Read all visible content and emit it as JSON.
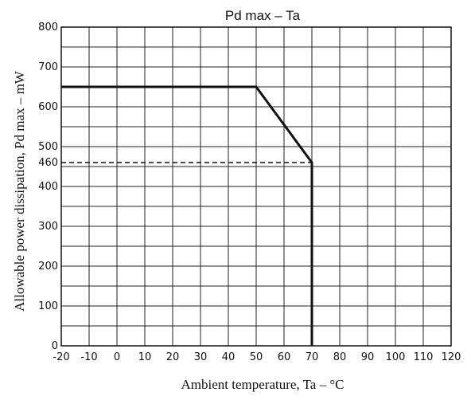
{
  "chart_data": {
    "type": "line",
    "title": "Pd max  –  Ta",
    "xlabel": "Ambient temperature, Ta  –  °C",
    "ylabel": "Allowable power dissipation, Pd max  –  mW",
    "xlim": [
      -20,
      120
    ],
    "ylim": [
      0,
      800
    ],
    "x_ticks": [
      -20,
      -10,
      0,
      10,
      20,
      30,
      40,
      50,
      60,
      70,
      80,
      90,
      100,
      110,
      120
    ],
    "y_ticks": [
      0,
      100,
      200,
      300,
      400,
      460,
      500,
      600,
      700,
      800
    ],
    "x_tick_labels": [
      "-20",
      "-10",
      "0",
      "10",
      "20",
      "30",
      "40",
      "50",
      "60",
      "70",
      "80",
      "90",
      "100",
      "110",
      "120"
    ],
    "y_tick_labels": [
      "0",
      "100",
      "200",
      "300",
      "400",
      "460",
      "500",
      "600",
      "700",
      "800"
    ],
    "grid": true,
    "series": [
      {
        "style": "solid",
        "color": "#111111",
        "x": [
          -20,
          50,
          70,
          70
        ],
        "y": [
          650,
          650,
          460,
          0
        ]
      }
    ],
    "reference_lines": [
      {
        "style": "dashed",
        "x": [
          -20,
          70
        ],
        "y": [
          460,
          460
        ]
      }
    ]
  }
}
